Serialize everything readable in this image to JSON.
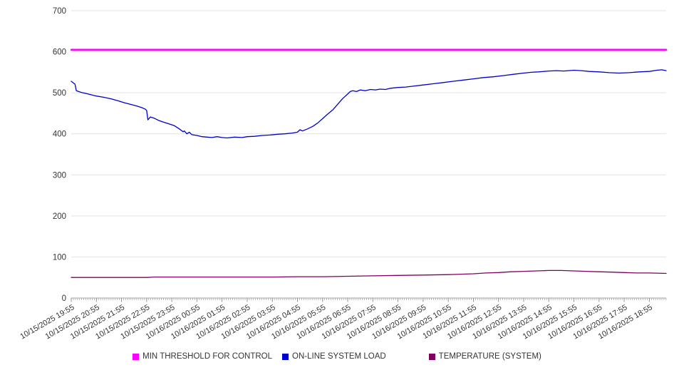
{
  "chart_data": {
    "type": "line",
    "title": "",
    "xlabel": "",
    "ylabel": "",
    "ylim": [
      0,
      700
    ],
    "yticks": [
      0,
      100,
      200,
      300,
      400,
      500,
      600,
      700
    ],
    "grid": "horizontal",
    "legend_position": "bottom-center",
    "x_domain_hours": [
      0,
      23.67
    ],
    "x_tick_hours": [
      0,
      1,
      2,
      3,
      4,
      5,
      6,
      7,
      8,
      9,
      10,
      11,
      12,
      13,
      14,
      15,
      16,
      17,
      18,
      19,
      20,
      21,
      22,
      23
    ],
    "x_labels": [
      "10/15/2025 19:55",
      "10/15/2025 20:55",
      "10/15/2025 21:55",
      "10/15/2025 22:55",
      "10/15/2025 23:55",
      "10/16/2025 00:55",
      "10/16/2025 01:55",
      "10/16/2025 02:55",
      "10/16/2025 03:55",
      "10/16/2025 04:55",
      "10/16/2025 05:55",
      "10/16/2025 06:55",
      "10/16/2025 07:55",
      "10/16/2025 08:55",
      "10/16/2025 09:55",
      "10/16/2025 10:55",
      "10/16/2025 11:55",
      "10/16/2025 12:55",
      "10/16/2025 13:55",
      "10/16/2025 14:55",
      "10/16/2025 15:55",
      "10/16/2025 16:55",
      "10/16/2025 17:55",
      "10/16/2025 18:55"
    ],
    "series": [
      {
        "name": "MIN THRESHOLD FOR CONTROL",
        "color": "#ff00ff",
        "width": 2.5,
        "points": [
          [
            0,
            605
          ],
          [
            23.67,
            605
          ]
        ]
      },
      {
        "name": "ON-LINE SYSTEM LOAD",
        "color": "#0000cd",
        "width": 1.3,
        "points": [
          [
            0,
            528
          ],
          [
            0.15,
            521
          ],
          [
            0.2,
            505
          ],
          [
            0.4,
            501
          ],
          [
            0.6,
            498
          ],
          [
            0.8,
            495
          ],
          [
            1,
            492
          ],
          [
            1.3,
            489
          ],
          [
            1.6,
            485
          ],
          [
            1.9,
            480
          ],
          [
            2.1,
            476
          ],
          [
            2.4,
            471
          ],
          [
            2.6,
            468
          ],
          [
            2.8,
            464
          ],
          [
            2.95,
            460
          ],
          [
            3.0,
            457
          ],
          [
            3.05,
            434
          ],
          [
            3.15,
            441
          ],
          [
            3.3,
            438
          ],
          [
            3.5,
            432
          ],
          [
            3.7,
            428
          ],
          [
            3.9,
            424
          ],
          [
            4.1,
            420
          ],
          [
            4.3,
            412
          ],
          [
            4.45,
            405
          ],
          [
            4.5,
            407
          ],
          [
            4.6,
            400
          ],
          [
            4.7,
            404
          ],
          [
            4.8,
            398
          ],
          [
            5,
            396
          ],
          [
            5.2,
            393
          ],
          [
            5.4,
            392
          ],
          [
            5.6,
            391
          ],
          [
            5.8,
            393
          ],
          [
            6,
            391
          ],
          [
            6.2,
            390
          ],
          [
            6.5,
            392
          ],
          [
            6.8,
            391
          ],
          [
            7,
            393
          ],
          [
            7.3,
            394
          ],
          [
            7.6,
            396
          ],
          [
            7.9,
            397
          ],
          [
            8.2,
            399
          ],
          [
            8.5,
            400
          ],
          [
            8.8,
            402
          ],
          [
            9,
            404
          ],
          [
            9.1,
            410
          ],
          [
            9.2,
            407
          ],
          [
            9.4,
            412
          ],
          [
            9.6,
            418
          ],
          [
            9.8,
            426
          ],
          [
            10,
            437
          ],
          [
            10.2,
            448
          ],
          [
            10.4,
            458
          ],
          [
            10.6,
            472
          ],
          [
            10.8,
            486
          ],
          [
            11,
            497
          ],
          [
            11.1,
            503
          ],
          [
            11.2,
            505
          ],
          [
            11.35,
            503
          ],
          [
            11.5,
            507
          ],
          [
            11.7,
            505
          ],
          [
            11.9,
            508
          ],
          [
            12.1,
            507
          ],
          [
            12.3,
            509
          ],
          [
            12.5,
            508
          ],
          [
            12.7,
            511
          ],
          [
            13,
            513
          ],
          [
            13.3,
            514
          ],
          [
            13.6,
            516
          ],
          [
            14,
            519
          ],
          [
            14.4,
            522
          ],
          [
            14.8,
            525
          ],
          [
            15.2,
            528
          ],
          [
            15.6,
            531
          ],
          [
            16,
            534
          ],
          [
            16.4,
            537
          ],
          [
            16.8,
            539
          ],
          [
            17.2,
            542
          ],
          [
            17.6,
            545
          ],
          [
            18,
            548
          ],
          [
            18.3,
            550
          ],
          [
            18.6,
            551
          ],
          [
            19,
            553
          ],
          [
            19.3,
            554
          ],
          [
            19.6,
            553
          ],
          [
            20,
            555
          ],
          [
            20.3,
            554
          ],
          [
            20.6,
            552
          ],
          [
            21,
            551
          ],
          [
            21.4,
            549
          ],
          [
            21.8,
            548
          ],
          [
            22.2,
            549
          ],
          [
            22.6,
            551
          ],
          [
            23,
            552
          ],
          [
            23.3,
            555
          ],
          [
            23.5,
            556
          ],
          [
            23.67,
            554
          ]
        ]
      },
      {
        "name": "TEMPERATURE (SYSTEM)",
        "color": "#800060",
        "width": 1.3,
        "points": [
          [
            0,
            50
          ],
          [
            2,
            50
          ],
          [
            3,
            50
          ],
          [
            3.3,
            51
          ],
          [
            4,
            51
          ],
          [
            6,
            51
          ],
          [
            8,
            51
          ],
          [
            9,
            52
          ],
          [
            10,
            52
          ],
          [
            11,
            53
          ],
          [
            12,
            54
          ],
          [
            13,
            55
          ],
          [
            14,
            56
          ],
          [
            15,
            57
          ],
          [
            15.5,
            58
          ],
          [
            16,
            59
          ],
          [
            16.5,
            61
          ],
          [
            17,
            62
          ],
          [
            17.5,
            64
          ],
          [
            18,
            65
          ],
          [
            18.5,
            66
          ],
          [
            19,
            67
          ],
          [
            19.5,
            67
          ],
          [
            20,
            66
          ],
          [
            20.5,
            65
          ],
          [
            21,
            64
          ],
          [
            21.5,
            63
          ],
          [
            22,
            62
          ],
          [
            22.5,
            61
          ],
          [
            23,
            61
          ],
          [
            23.67,
            60
          ]
        ]
      }
    ]
  }
}
